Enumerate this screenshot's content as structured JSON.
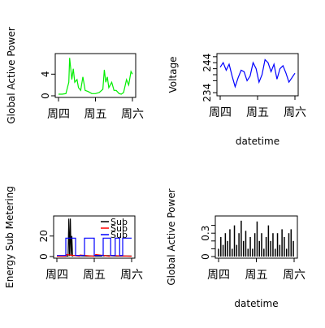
{
  "x_ticks": [
    "周四",
    "周五",
    "周六"
  ],
  "chart_data": [
    {
      "id": "global-active-power-line",
      "type": "line",
      "title": "",
      "xlabel": "",
      "ylabel": "Global Active Power",
      "x_ticks": [
        "周四",
        "周五",
        "周六"
      ],
      "y_ticks": [
        0,
        4
      ],
      "ylim": [
        0,
        7.5
      ],
      "grid": false,
      "series": [
        {
          "name": "",
          "color": "#00ee00",
          "x": [
            0.0,
            0.05,
            0.1,
            0.14,
            0.15,
            0.18,
            0.2,
            0.22,
            0.25,
            0.27,
            0.3,
            0.33,
            0.36,
            0.4,
            0.45,
            0.5,
            0.55,
            0.6,
            0.62,
            0.64,
            0.66,
            0.68,
            0.7,
            0.72,
            0.75,
            0.78,
            0.82,
            0.85,
            0.88,
            0.92,
            0.95,
            0.98,
            1.0
          ],
          "y": [
            0.3,
            0.3,
            0.4,
            2.5,
            7.0,
            3.0,
            5.0,
            2.5,
            3.0,
            1.5,
            1.0,
            3.5,
            1.0,
            0.8,
            0.4,
            0.4,
            0.6,
            1.2,
            4.8,
            2.5,
            3.5,
            1.5,
            2.0,
            2.5,
            1.0,
            1.0,
            0.4,
            0.3,
            0.6,
            3.0,
            2.0,
            4.5,
            4.0
          ]
        }
      ]
    },
    {
      "id": "voltage-line",
      "type": "line",
      "title": "",
      "xlabel": "datetime",
      "ylabel": "Voltage",
      "x_ticks": [
        "周四",
        "周五",
        "周六"
      ],
      "y_ticks": [
        234,
        244
      ],
      "y_ticks_minor": [
        238,
        240,
        242,
        246
      ],
      "ylim": [
        233.5,
        246.5
      ],
      "grid": false,
      "series": [
        {
          "name": "",
          "color": "#0000ff",
          "x": [
            0.0,
            0.04,
            0.08,
            0.12,
            0.16,
            0.2,
            0.24,
            0.28,
            0.32,
            0.36,
            0.4,
            0.44,
            0.48,
            0.52,
            0.56,
            0.6,
            0.64,
            0.68,
            0.72,
            0.76,
            0.8,
            0.84,
            0.88,
            0.92,
            0.96,
            1.0
          ],
          "y": [
            242.5,
            244.0,
            241.5,
            243.5,
            239.5,
            236.0,
            239.0,
            241.5,
            241.0,
            238.0,
            239.5,
            244.0,
            242.0,
            237.5,
            240.0,
            245.0,
            244.0,
            241.0,
            243.5,
            238.5,
            242.0,
            243.0,
            240.5,
            237.5,
            239.0,
            240.5
          ]
        }
      ]
    },
    {
      "id": "energy-sub-metering-line",
      "type": "line",
      "title": "",
      "xlabel": "",
      "ylabel": "Energy Sub Metering",
      "x_ticks": [
        "周四",
        "周五",
        "周六"
      ],
      "y_ticks": [
        0,
        20
      ],
      "ylim": [
        0,
        38
      ],
      "grid": false,
      "legend_position": "top-right",
      "legend_entries": [
        "Sub",
        "Sub",
        "Sub"
      ],
      "series": [
        {
          "name": "Sub",
          "color": "#000000",
          "x": [
            0.0,
            0.1,
            0.15,
            0.16,
            0.17,
            0.18,
            0.19,
            0.2,
            0.21,
            0.22,
            0.4,
            0.6,
            0.62,
            0.63,
            0.64,
            0.8,
            1.0
          ],
          "y": [
            0.5,
            0.5,
            0.5,
            37,
            0.5,
            37,
            0.5,
            20,
            0.5,
            1,
            0.5,
            0.5,
            1.5,
            0.5,
            1,
            0.5,
            0.5
          ]
        },
        {
          "name": "Sub",
          "color": "#ff0000",
          "x": [
            0.0,
            0.12,
            0.13,
            0.3,
            0.31,
            0.5,
            0.52,
            0.7,
            0.72,
            1.0
          ],
          "y": [
            0.3,
            0.3,
            2.0,
            0.3,
            1.5,
            0.3,
            2.0,
            0.3,
            1.0,
            0.3
          ]
        },
        {
          "name": "Sub",
          "color": "#0000ff",
          "x": [
            0.0,
            0.12,
            0.12,
            0.25,
            0.25,
            0.37,
            0.37,
            0.5,
            0.5,
            0.62,
            0.62,
            0.72,
            0.72,
            0.78,
            0.78,
            0.84,
            0.84,
            0.88,
            0.88,
            1.0
          ],
          "y": [
            1,
            1,
            18,
            18,
            1,
            1,
            18,
            18,
            1,
            1,
            18,
            18,
            1,
            1,
            18,
            18,
            1,
            1,
            18,
            18
          ]
        }
      ]
    },
    {
      "id": "global-reactive-power-bars",
      "type": "line",
      "title": "",
      "xlabel": "datetime",
      "ylabel": "Global Active Power",
      "x_ticks": [
        "周四",
        "周五",
        "周六"
      ],
      "y_ticks": [
        0.0,
        0.3
      ],
      "y_ticks_minor": [
        0.1,
        0.2,
        0.4
      ],
      "ylim": [
        0,
        0.5
      ],
      "grid": false,
      "series": [
        {
          "name": "",
          "color": "#000000",
          "x": [
            0.0,
            0.03,
            0.06,
            0.09,
            0.12,
            0.15,
            0.18,
            0.21,
            0.24,
            0.27,
            0.3,
            0.33,
            0.36,
            0.39,
            0.42,
            0.45,
            0.48,
            0.51,
            0.54,
            0.57,
            0.6,
            0.63,
            0.66,
            0.69,
            0.72,
            0.75,
            0.78,
            0.81,
            0.84,
            0.87,
            0.9,
            0.93,
            0.96,
            0.99
          ],
          "y": [
            0.1,
            0.25,
            0.15,
            0.3,
            0.2,
            0.35,
            0.1,
            0.4,
            0.15,
            0.3,
            0.46,
            0.2,
            0.33,
            0.1,
            0.25,
            0.1,
            0.3,
            0.45,
            0.2,
            0.3,
            0.1,
            0.25,
            0.4,
            0.2,
            0.3,
            0.1,
            0.3,
            0.15,
            0.35,
            0.25,
            0.1,
            0.3,
            0.35,
            0.2
          ]
        }
      ]
    }
  ]
}
